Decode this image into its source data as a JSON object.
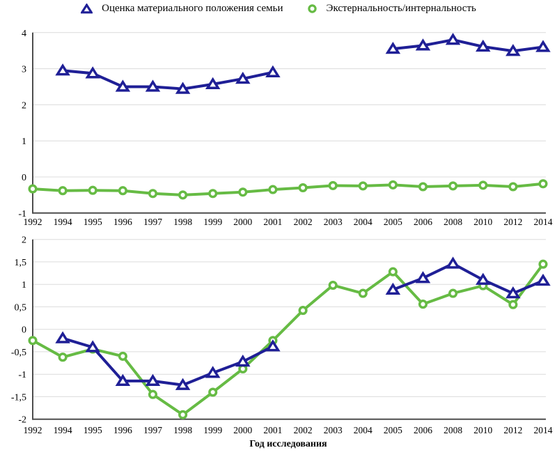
{
  "legend": {
    "items": [
      {
        "label": "Оценка материального положения семьи",
        "marker": "triangle",
        "color": "#1f1f96"
      },
      {
        "label": "Экстернальность/интернальность",
        "marker": "circle",
        "color": "#66bb44"
      }
    ]
  },
  "colors": {
    "navy": "#1f1f96",
    "green": "#66bb44",
    "grid": "#dcdcdc",
    "axis": "#4d4d4d",
    "background": "#ffffff"
  },
  "x_axis_title": "Год исследования",
  "chart_data": [
    {
      "type": "line",
      "panel": "top",
      "title": "",
      "xlabel": "",
      "ylabel": "",
      "grid": true,
      "legend_position": "top",
      "categories": [
        "1992",
        "1994",
        "1995",
        "1996",
        "1997",
        "1998",
        "1999",
        "2000",
        "2001",
        "2002",
        "2003",
        "2004",
        "2005",
        "2006",
        "2008",
        "2010",
        "2012",
        "2014"
      ],
      "ylim": [
        -1,
        4
      ],
      "yticks": [
        {
          "v": 4,
          "label": "4"
        },
        {
          "v": 3,
          "label": "3"
        },
        {
          "v": 2,
          "label": "2"
        },
        {
          "v": 1,
          "label": "1"
        },
        {
          "v": 0,
          "label": "0"
        },
        {
          "v": -1,
          "label": "-1"
        }
      ],
      "series": [
        {
          "name": "Экстернальность/интернальность",
          "marker": "circle",
          "color": "#66bb44",
          "values": [
            -0.33,
            -0.38,
            -0.37,
            -0.38,
            -0.46,
            -0.5,
            -0.46,
            -0.42,
            -0.35,
            -0.3,
            -0.24,
            -0.25,
            -0.22,
            -0.27,
            -0.25,
            -0.23,
            -0.27,
            -0.19
          ]
        },
        {
          "name": "Оценка материального положения семьи",
          "marker": "triangle",
          "color": "#1f1f96",
          "values": [
            null,
            2.95,
            2.87,
            2.5,
            2.5,
            2.44,
            2.57,
            2.72,
            2.9,
            null,
            null,
            null,
            3.55,
            3.64,
            3.8,
            3.61,
            3.49,
            3.6
          ]
        }
      ]
    },
    {
      "type": "line",
      "panel": "bottom",
      "title": "",
      "xlabel": "Год исследования",
      "ylabel": "",
      "grid": true,
      "categories": [
        "1992",
        "1994",
        "1995",
        "1996",
        "1997",
        "1998",
        "1999",
        "2000",
        "2001",
        "2002",
        "2003",
        "2004",
        "2005",
        "2006",
        "2008",
        "2010",
        "2012",
        "2014"
      ],
      "ylim": [
        -2,
        2
      ],
      "yticks": [
        {
          "v": 2,
          "label": "2"
        },
        {
          "v": 1.5,
          "label": "1,5"
        },
        {
          "v": 1,
          "label": "1"
        },
        {
          "v": 0.5,
          "label": "0,5"
        },
        {
          "v": 0,
          "label": "0"
        },
        {
          "v": -0.5,
          "label": "-0,5"
        },
        {
          "v": -1,
          "label": "-1"
        },
        {
          "v": -1.5,
          "label": "-1,5"
        },
        {
          "v": -2,
          "label": "-2"
        }
      ],
      "series": [
        {
          "name": "Экстернальность/интернальность",
          "marker": "circle",
          "color": "#66bb44",
          "values": [
            -0.25,
            -0.62,
            -0.44,
            -0.6,
            -1.45,
            -1.9,
            -1.4,
            -0.88,
            -0.25,
            0.42,
            0.98,
            0.8,
            1.28,
            0.56,
            0.8,
            0.97,
            0.55,
            1.45
          ]
        },
        {
          "name": "Оценка материального положения семьи",
          "marker": "triangle",
          "color": "#1f1f96",
          "values": [
            null,
            -0.2,
            -0.4,
            -1.15,
            -1.15,
            -1.24,
            -0.97,
            -0.72,
            -0.38,
            null,
            null,
            null,
            0.88,
            1.14,
            1.46,
            1.1,
            0.8,
            1.08
          ]
        }
      ]
    }
  ]
}
